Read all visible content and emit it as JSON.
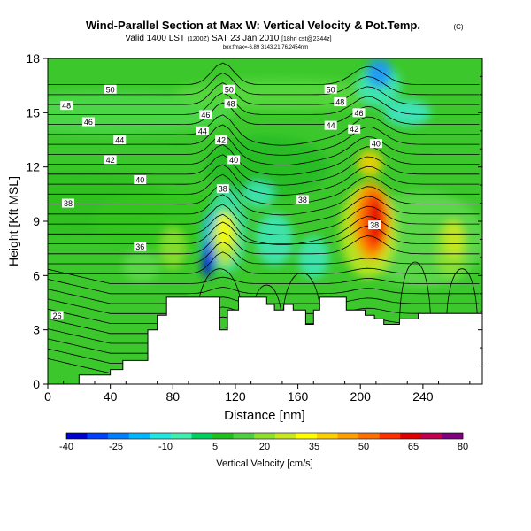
{
  "header": {
    "title": "Wind-Parallel Section at Max W: Vertical Velocity & Pot.Temp.",
    "title_mark": "(C)",
    "valid_prefix": "Valid 1400 LST",
    "valid_small": "(1200Z)",
    "valid_date": "SAT 23 Jan 2010",
    "valid_suffix": "[18hrl cst@2344z]",
    "subline": "box:fmax=-6.89 3143.21 76.2454nm"
  },
  "chart_data": {
    "type": "heatmap",
    "xlabel": "Distance [nm]",
    "ylabel": "Height [Kft MSL]",
    "xlim": [
      0,
      278
    ],
    "ylim": [
      0,
      18
    ],
    "xticks": [
      0,
      40,
      80,
      120,
      160,
      200,
      240
    ],
    "yticks": [
      0,
      3,
      6,
      9,
      12,
      15,
      18
    ],
    "colorbar": {
      "label": "Vertical Velocity [cm/s]",
      "tick_labels": [
        "-40",
        "-25",
        "-10",
        "5",
        "20",
        "35",
        "50",
        "65",
        "80"
      ],
      "colors": [
        "#0000d0",
        "#0040ff",
        "#0080ff",
        "#00b8ff",
        "#20e8e0",
        "#40f0b0",
        "#00d060",
        "#20c020",
        "#50d040",
        "#90e030",
        "#c8e820",
        "#ffff00",
        "#ffd000",
        "#ffa000",
        "#ff7000",
        "#ff3000",
        "#e00000",
        "#c00050",
        "#800080"
      ]
    },
    "contour_field": "Potential Temperature",
    "contour_labels": [
      {
        "text": "50",
        "x": 40,
        "y": 16.3
      },
      {
        "text": "50",
        "x": 116,
        "y": 16.3
      },
      {
        "text": "50",
        "x": 181,
        "y": 16.3
      },
      {
        "text": "48",
        "x": 12,
        "y": 15.4
      },
      {
        "text": "48",
        "x": 117,
        "y": 15.5
      },
      {
        "text": "48",
        "x": 187,
        "y": 15.6
      },
      {
        "text": "46",
        "x": 26,
        "y": 14.5
      },
      {
        "text": "46",
        "x": 101,
        "y": 14.9
      },
      {
        "text": "46",
        "x": 199,
        "y": 15.0
      },
      {
        "text": "44",
        "x": 46,
        "y": 13.5
      },
      {
        "text": "44",
        "x": 99,
        "y": 14.0
      },
      {
        "text": "44",
        "x": 181,
        "y": 14.3
      },
      {
        "text": "42",
        "x": 40,
        "y": 12.4
      },
      {
        "text": "42",
        "x": 111,
        "y": 13.5
      },
      {
        "text": "42",
        "x": 196,
        "y": 14.1
      },
      {
        "text": "40",
        "x": 59,
        "y": 11.3
      },
      {
        "text": "40",
        "x": 119,
        "y": 12.4
      },
      {
        "text": "40",
        "x": 210,
        "y": 13.3
      },
      {
        "text": "38",
        "x": 13,
        "y": 10.0
      },
      {
        "text": "38",
        "x": 112,
        "y": 10.8
      },
      {
        "text": "38",
        "x": 163,
        "y": 10.2
      },
      {
        "text": "38",
        "x": 209,
        "y": 8.8
      },
      {
        "text": "36",
        "x": 59,
        "y": 7.6
      },
      {
        "text": "26",
        "x": 6,
        "y": 3.8
      }
    ],
    "terrain": [
      [
        0,
        0
      ],
      [
        20,
        0
      ],
      [
        20,
        0.5
      ],
      [
        40,
        0.5
      ],
      [
        40,
        0.8
      ],
      [
        48,
        0.8
      ],
      [
        48,
        1.3
      ],
      [
        64,
        1.3
      ],
      [
        64,
        3.0
      ],
      [
        70,
        3.0
      ],
      [
        70,
        3.8
      ],
      [
        76,
        3.8
      ],
      [
        76,
        4.8
      ],
      [
        110,
        4.8
      ],
      [
        110,
        3.0
      ],
      [
        115,
        3.0
      ],
      [
        115,
        4.1
      ],
      [
        122,
        4.1
      ],
      [
        122,
        4.8
      ],
      [
        140,
        4.8
      ],
      [
        140,
        4.4
      ],
      [
        145,
        4.4
      ],
      [
        145,
        4.1
      ],
      [
        151,
        4.1
      ],
      [
        151,
        4.4
      ],
      [
        157,
        4.4
      ],
      [
        157,
        4.1
      ],
      [
        165,
        4.1
      ],
      [
        165,
        3.3
      ],
      [
        170,
        3.3
      ],
      [
        170,
        4.1
      ],
      [
        174,
        4.1
      ],
      [
        174,
        4.8
      ],
      [
        191,
        4.8
      ],
      [
        191,
        4.1
      ],
      [
        203,
        4.1
      ],
      [
        203,
        3.8
      ],
      [
        209,
        3.8
      ],
      [
        209,
        3.6
      ],
      [
        215,
        3.6
      ],
      [
        215,
        3.3
      ],
      [
        225,
        3.3
      ],
      [
        225,
        3.6
      ],
      [
        237,
        3.6
      ],
      [
        237,
        3.9
      ],
      [
        278,
        3.9
      ],
      [
        278,
        0
      ]
    ]
  }
}
